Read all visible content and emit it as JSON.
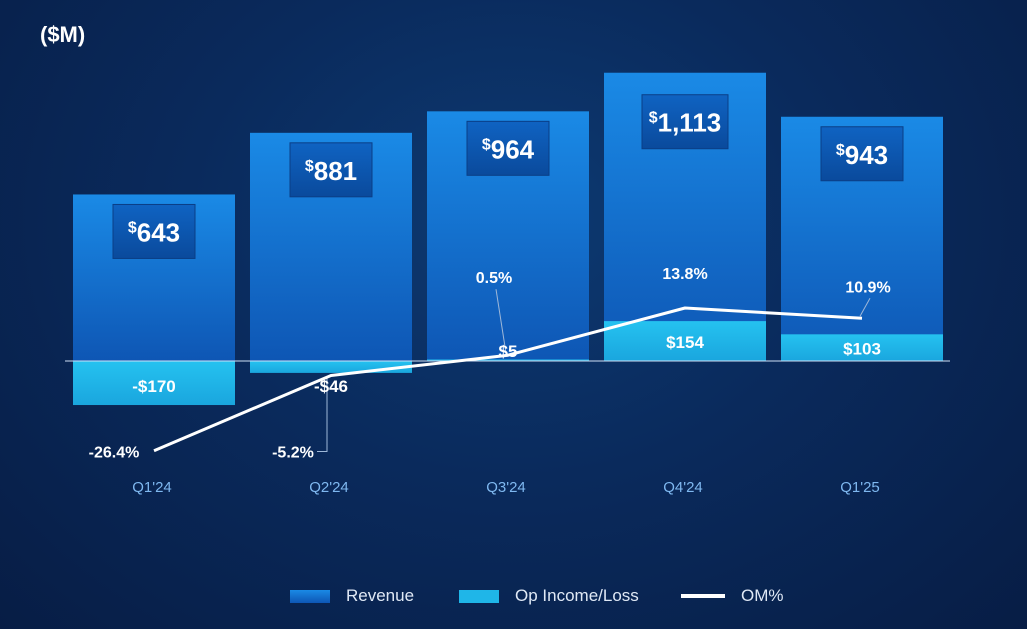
{
  "unit_label": "($M)",
  "colors": {
    "revenue_top": "#1a8ae6",
    "revenue_bottom": "#0d4fa8",
    "op_income": "#1fb6e8",
    "om_line": "#ffffff",
    "axis_tick": "#7fb8f0"
  },
  "chart_data": {
    "type": "bar",
    "categories": [
      "Q1'24",
      "Q2'24",
      "Q3'24",
      "Q4'24",
      "Q1'25"
    ],
    "series": [
      {
        "name": "Revenue",
        "values": [
          643,
          881,
          964,
          1113,
          943
        ],
        "labels": [
          "643",
          "881",
          "964",
          "1,113",
          "943"
        ]
      },
      {
        "name": "Op Income/Loss",
        "values": [
          -170,
          -46,
          5,
          154,
          103
        ],
        "labels": [
          "-$170",
          "-$46",
          "$5",
          "$154",
          "$103"
        ]
      },
      {
        "name": "OM%",
        "values": [
          -26.4,
          -5.2,
          0.5,
          13.8,
          10.9
        ],
        "labels": [
          "-26.4%",
          "-5.2%",
          "0.5%",
          "13.8%",
          "10.9%"
        ]
      }
    ],
    "ylabel": "($M)",
    "grid": false,
    "legend": "bottom"
  },
  "legend": [
    {
      "label": "Revenue"
    },
    {
      "label": "Op Income/Loss"
    },
    {
      "label": "OM%"
    }
  ]
}
